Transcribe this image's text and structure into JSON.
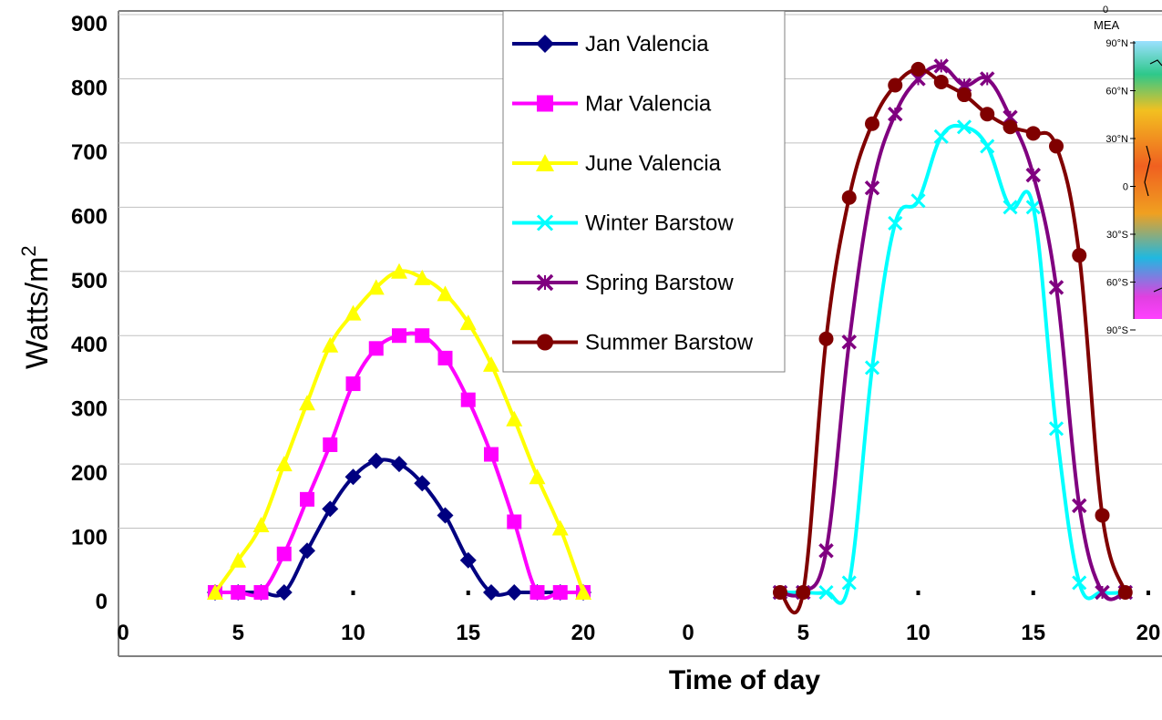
{
  "chart_data": {
    "type": "line",
    "ylabel": "Watts/m",
    "ylabel_sup": "2",
    "xlabel": "Time of day",
    "ylim": [
      0,
      900
    ],
    "yticks": [
      "0",
      "100",
      "200",
      "300",
      "400",
      "500",
      "600",
      "700",
      "800",
      "900"
    ],
    "grid": "horizontal",
    "legend_position": "top-center",
    "panels": [
      {
        "name": "Valencia",
        "xlim": [
          0,
          20
        ],
        "xticks": [
          "0",
          "5",
          "10",
          "15",
          "20"
        ],
        "series": [
          {
            "name": "Jan Valencia",
            "color": "#000080",
            "marker": "diamond",
            "x": [
              4,
              5,
              6,
              7,
              8,
              9,
              10,
              11,
              12,
              13,
              14,
              15,
              16,
              17,
              18,
              19,
              20
            ],
            "y": [
              0,
              0,
              0,
              0,
              65,
              130,
              180,
              205,
              200,
              170,
              120,
              50,
              0,
              0,
              0,
              0,
              0
            ]
          },
          {
            "name": "Mar Valencia",
            "color": "#ff00ff",
            "marker": "square",
            "x": [
              4,
              5,
              6,
              7,
              8,
              9,
              10,
              11,
              12,
              13,
              14,
              15,
              16,
              17,
              18,
              19,
              20
            ],
            "y": [
              0,
              0,
              0,
              60,
              145,
              230,
              325,
              380,
              400,
              400,
              365,
              300,
              215,
              110,
              0,
              0,
              0
            ]
          },
          {
            "name": "June Valencia",
            "color": "#ffff00",
            "marker": "triangle",
            "x": [
              4,
              5,
              6,
              7,
              8,
              9,
              10,
              11,
              12,
              13,
              14,
              15,
              16,
              17,
              18,
              19,
              20
            ],
            "y": [
              0,
              50,
              105,
              200,
              295,
              385,
              435,
              475,
              500,
              490,
              465,
              420,
              355,
              270,
              180,
              100,
              0
            ]
          }
        ]
      },
      {
        "name": "Barstow",
        "xlim": [
          0,
          20
        ],
        "xticks": [
          "0",
          "5",
          "10",
          "15",
          "20"
        ],
        "series": [
          {
            "name": "Winter Barstow",
            "color": "#00ffff",
            "marker": "x",
            "x": [
              4,
              5,
              6,
              7,
              8,
              9,
              10,
              11,
              12,
              13,
              14,
              15,
              16,
              17,
              18,
              19
            ],
            "y": [
              0,
              0,
              0,
              15,
              350,
              575,
              610,
              710,
              725,
              695,
              600,
              600,
              255,
              15,
              0,
              0
            ]
          },
          {
            "name": "Spring Barstow",
            "color": "#800080",
            "marker": "star",
            "x": [
              4,
              5,
              6,
              7,
              8,
              9,
              10,
              11,
              12,
              13,
              14,
              15,
              16,
              17,
              18,
              19
            ],
            "y": [
              0,
              0,
              65,
              390,
              630,
              745,
              800,
              820,
              790,
              800,
              740,
              650,
              475,
              135,
              0,
              0
            ]
          },
          {
            "name": "Summer Barstow",
            "color": "#800000",
            "marker": "circle",
            "x": [
              4,
              5,
              6,
              7,
              8,
              9,
              10,
              11,
              12,
              13,
              14,
              15,
              16,
              17,
              18,
              19
            ],
            "y": [
              0,
              0,
              395,
              615,
              730,
              790,
              815,
              795,
              775,
              745,
              725,
              715,
              695,
              525,
              120,
              0
            ]
          }
        ]
      }
    ]
  },
  "inset_map": {
    "top_label": "0",
    "title": "MEA",
    "lat_labels": [
      "90°N",
      "60°N",
      "30°N",
      "0",
      "30°S",
      "60°S",
      "90°S"
    ]
  }
}
